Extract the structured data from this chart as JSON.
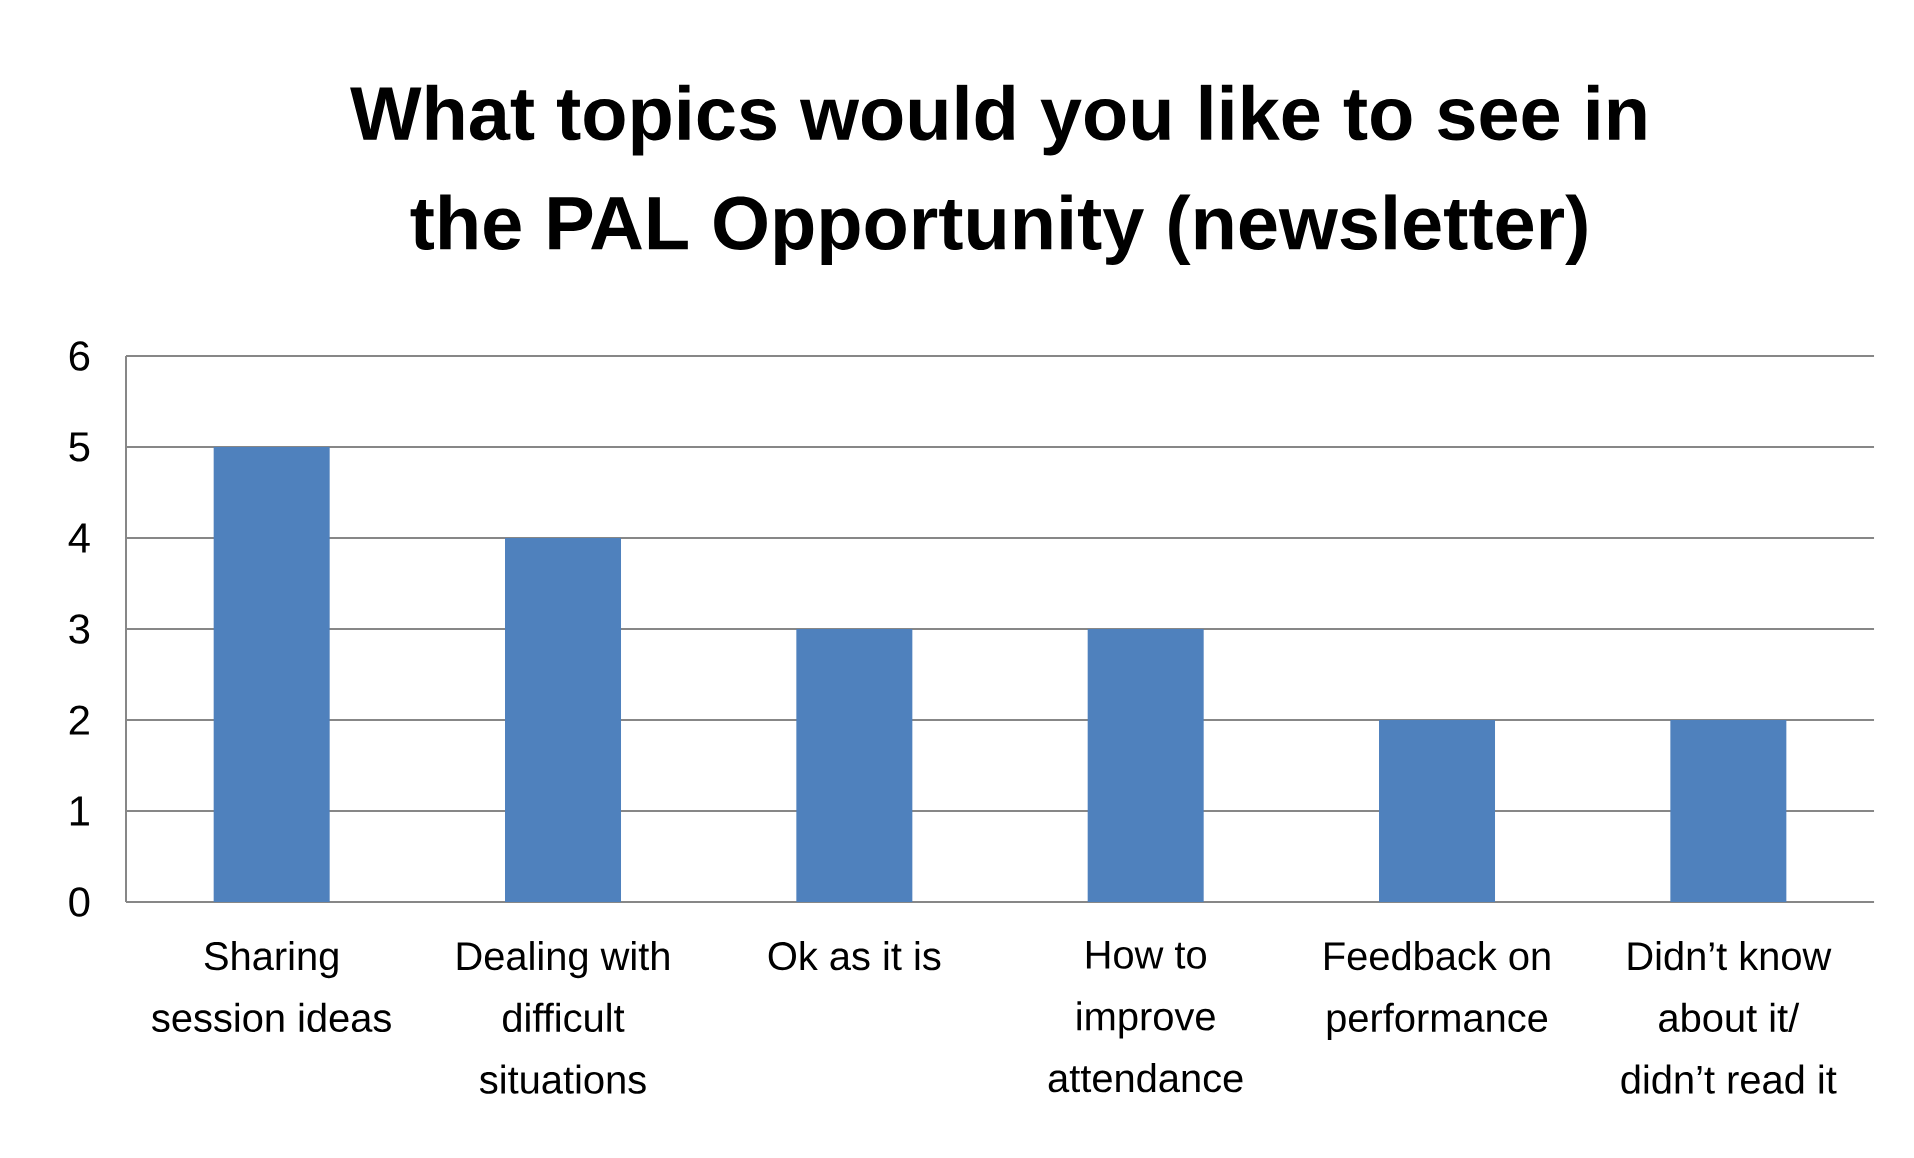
{
  "chart_data": {
    "type": "bar",
    "title": "What topics would you like to see in the PAL Opportunity (newsletter)",
    "categories": [
      "Sharing session ideas",
      "Dealing with difficult situations",
      "Ok as it is",
      "How to improve attendance",
      "Feedback on performance",
      "Didn’t know about it/ didn’t read it"
    ],
    "values": [
      5,
      4,
      3,
      3,
      2,
      2
    ],
    "color": "#4f81bd",
    "ylim": [
      0,
      6
    ],
    "yticks": [
      0,
      1,
      2,
      3,
      4,
      5,
      6
    ],
    "grid": "y"
  }
}
